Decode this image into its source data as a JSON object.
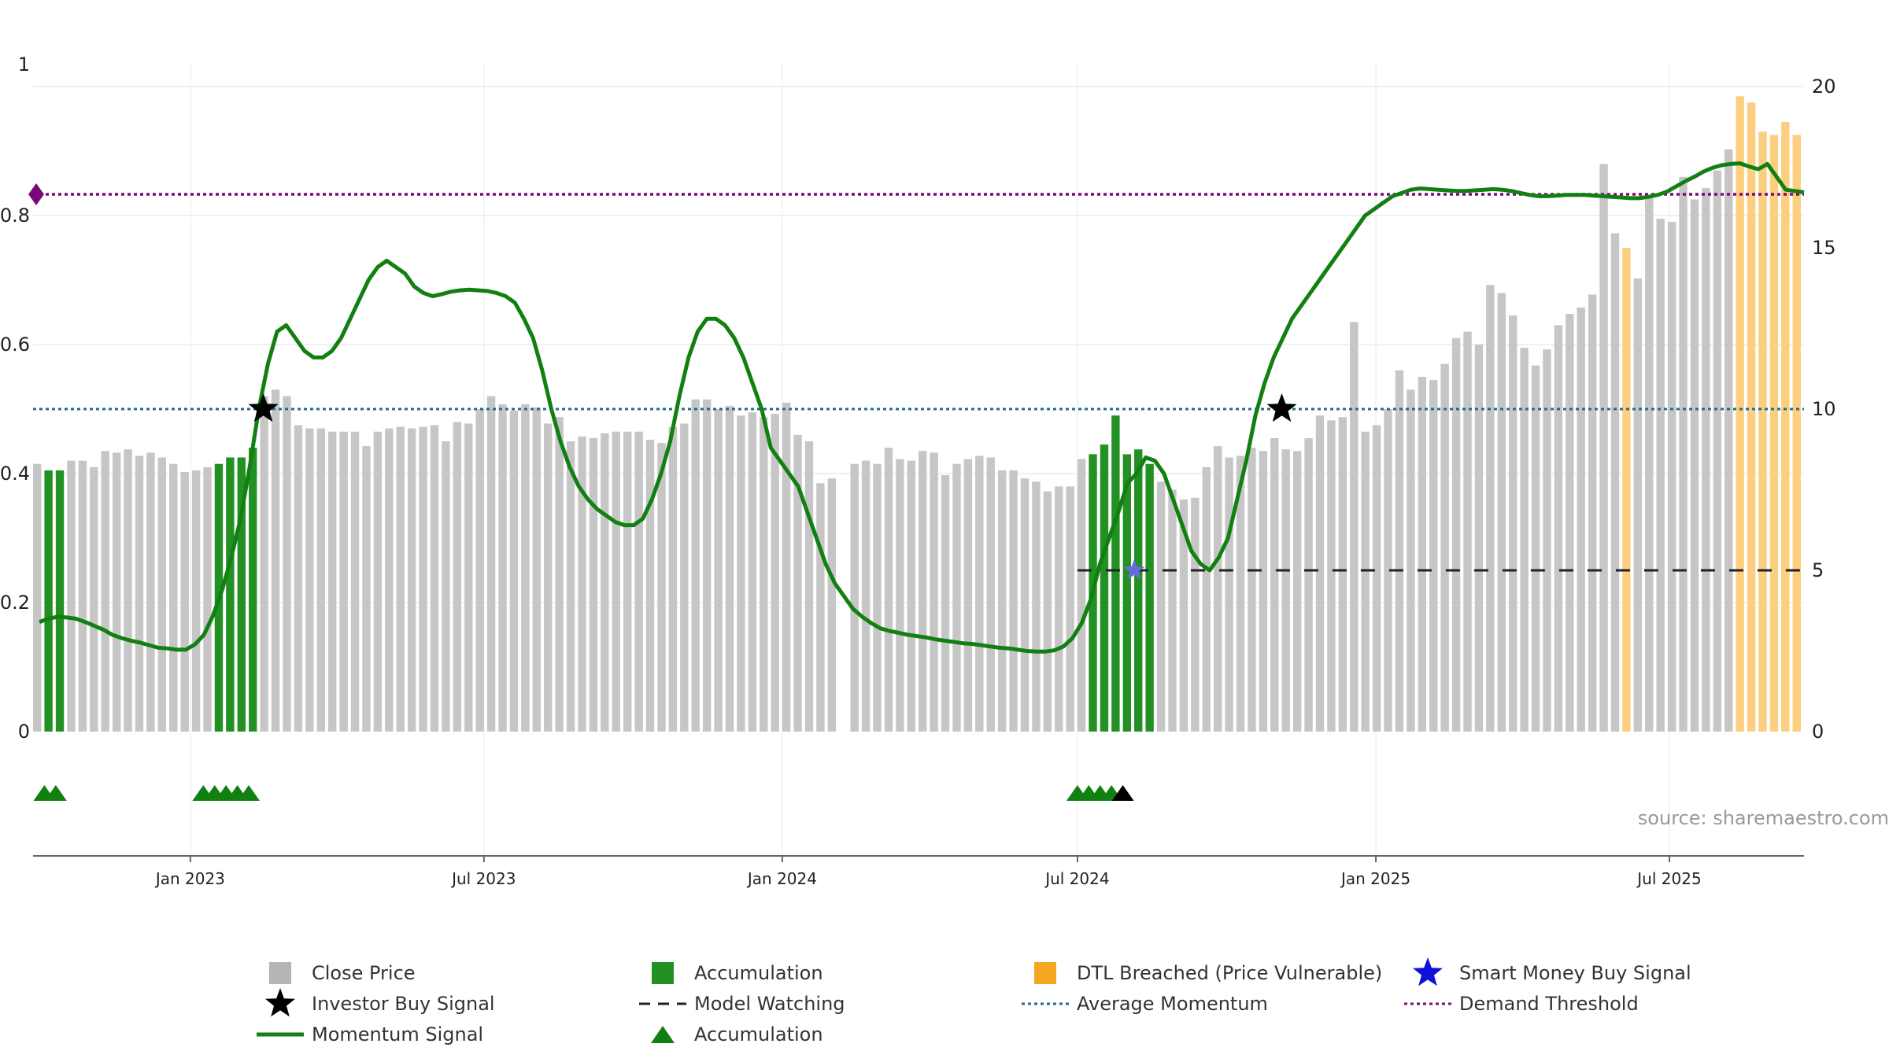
{
  "chart_data": {
    "type": "bar",
    "source_text": "source: sharemaestro.com",
    "x_ticks": [
      "Jan 2023",
      "Jul 2023",
      "Jan 2024",
      "Jul 2024",
      "Jan 2025",
      "Jul 2025"
    ],
    "x_tick_dates": [
      "2023-01-01",
      "2023-07-01",
      "2024-01-01",
      "2024-07-01",
      "2025-01-01",
      "2025-07-01"
    ],
    "x_range": [
      "2022-09-26",
      "2025-09-22"
    ],
    "y_left": {
      "ticks": [
        "0",
        "0.2",
        "0.4",
        "0.6",
        "0.8",
        "1"
      ],
      "values": [
        0,
        0.2,
        0.4,
        0.6,
        0.8,
        1
      ],
      "range": [
        0,
        1
      ]
    },
    "y_right": {
      "ticks": [
        "0",
        "5",
        "10",
        "15",
        "20"
      ],
      "values": [
        0,
        5,
        10,
        15,
        20
      ],
      "range": [
        0,
        20
      ]
    },
    "price_weekly": [
      8.3,
      8.1,
      8.1,
      8.4,
      8.4,
      8.2,
      8.7,
      8.65,
      8.75,
      8.55,
      8.65,
      8.5,
      8.3,
      8.05,
      8.1,
      8.2,
      8.3,
      8.5,
      8.5,
      8.8,
      10.4,
      10.6,
      10.4,
      9.5,
      9.4,
      9.4,
      9.3,
      9.3,
      9.3,
      8.85,
      9.3,
      9.4,
      9.45,
      9.4,
      9.45,
      9.5,
      9.0,
      9.6,
      9.55,
      10.0,
      10.4,
      10.15,
      9.95,
      10.15,
      10.05,
      9.55,
      9.75,
      9.0,
      9.15,
      9.1,
      9.25,
      9.3,
      9.3,
      9.3,
      9.05,
      8.95,
      9.45,
      9.55,
      10.3,
      10.3,
      10.0,
      10.1,
      9.8,
      9.9,
      9.75,
      9.85,
      10.2,
      9.2,
      9.0,
      7.7,
      7.85,
      0.0,
      8.3,
      8.4,
      8.3,
      8.8,
      8.45,
      8.4,
      8.7,
      8.65,
      7.95,
      8.3,
      8.45,
      8.55,
      8.5,
      8.1,
      8.1,
      7.85,
      7.75,
      7.45,
      7.6,
      7.6,
      8.45,
      8.6,
      8.9,
      9.8,
      8.6,
      8.75,
      8.3,
      7.75,
      7.5,
      7.2,
      7.25,
      8.2,
      8.85,
      8.5,
      8.55,
      8.8,
      8.7,
      9.1,
      8.75,
      8.7,
      9.1,
      9.8,
      9.65,
      9.75,
      12.7,
      9.3,
      9.5,
      10.0,
      11.2,
      10.6,
      11.0,
      10.9,
      11.4,
      12.2,
      12.4,
      12.0,
      13.85,
      13.6,
      12.9,
      11.9,
      11.35,
      11.85,
      12.6,
      12.95,
      13.15,
      13.55,
      17.6,
      15.45,
      15.0,
      14.05,
      16.6,
      15.9,
      15.8,
      17.2,
      16.5,
      16.85,
      17.4,
      18.05,
      19.7,
      19.5,
      18.6,
      18.5,
      18.9,
      18.5
    ],
    "series": [
      {
        "name": "Close Price",
        "color": "#c6c6c6"
      },
      {
        "name": "Investor Buy Signal",
        "color": "#000000",
        "points": [
          {
            "date": "2023-02-15",
            "y": 0.5
          },
          {
            "date": "2024-11-04",
            "y": 0.5
          }
        ]
      },
      {
        "name": "Momentum Signal",
        "color": "#118011",
        "points": [
          [
            0.17,
            0.175
          ],
          [
            0.178,
            0.177
          ],
          [
            0.175,
            0.17
          ],
          [
            0.164,
            0.158
          ],
          [
            0.15,
            0.145
          ],
          [
            0.141,
            0.138
          ],
          [
            0.134,
            0.13
          ],
          [
            0.129,
            0.127
          ],
          [
            0.127,
            0.135
          ],
          [
            0.15,
            0.18
          ],
          [
            0.22,
            0.27
          ],
          [
            0.33,
            0.41
          ],
          [
            0.5,
            0.57
          ],
          [
            0.62,
            0.63
          ],
          [
            0.61,
            0.59
          ],
          [
            0.58,
            0.58
          ],
          [
            0.59,
            0.61
          ],
          [
            0.64,
            0.67
          ],
          [
            0.7,
            0.72
          ],
          [
            0.73,
            0.72
          ],
          [
            0.71,
            0.69
          ],
          [
            0.68,
            0.675
          ],
          [
            0.678,
            0.682
          ],
          [
            0.684,
            0.685
          ],
          [
            0.684,
            0.683
          ],
          [
            0.68,
            0.675
          ],
          [
            0.665,
            0.64
          ],
          [
            0.61,
            0.56
          ],
          [
            0.5,
            0.45
          ],
          [
            0.41,
            0.38
          ],
          [
            0.36,
            0.345
          ],
          [
            0.335,
            0.325
          ],
          [
            0.32,
            0.32
          ],
          [
            0.33,
            0.36
          ],
          [
            0.4,
            0.45
          ],
          [
            0.52,
            0.58
          ],
          [
            0.62,
            0.64
          ],
          [
            0.64,
            0.63
          ],
          [
            0.61,
            0.58
          ],
          [
            0.54,
            0.5
          ],
          [
            0.44,
            0.42
          ],
          [
            0.4,
            0.38
          ],
          [
            0.34,
            0.3
          ],
          [
            0.26,
            0.23
          ],
          [
            0.21,
            0.19
          ],
          [
            0.178,
            0.168
          ],
          [
            0.16,
            0.156
          ],
          [
            0.153,
            0.15
          ],
          [
            0.148,
            0.146
          ],
          [
            0.143,
            0.141
          ],
          [
            0.139,
            0.137
          ],
          [
            0.136,
            0.134
          ],
          [
            0.132,
            0.13
          ],
          [
            0.129,
            0.127
          ],
          [
            0.125,
            0.124
          ],
          [
            0.124,
            0.126
          ],
          [
            0.132,
            0.145
          ],
          [
            0.168,
            0.205
          ],
          [
            0.26,
            0.3
          ],
          [
            0.34,
            0.385
          ],
          [
            0.4,
            0.425
          ],
          [
            0.42,
            0.4
          ],
          [
            0.36,
            0.32
          ],
          [
            0.28,
            0.26
          ],
          [
            0.25,
            0.27
          ],
          [
            0.3,
            0.36
          ],
          [
            0.42,
            0.49
          ],
          [
            0.54,
            0.58
          ],
          [
            0.61,
            0.64
          ],
          [
            0.66,
            0.68
          ],
          [
            0.7,
            0.72
          ],
          [
            0.74,
            0.76
          ],
          [
            0.78,
            0.8
          ],
          [
            0.81,
            0.82
          ],
          [
            0.83,
            0.835
          ],
          [
            0.84,
            0.842
          ],
          [
            0.841,
            0.84
          ],
          [
            0.839,
            0.838
          ],
          [
            0.838,
            0.839
          ],
          [
            0.84,
            0.841
          ],
          [
            0.84,
            0.838
          ],
          [
            0.835,
            0.832
          ],
          [
            0.83,
            0.83
          ],
          [
            0.831,
            0.832
          ],
          [
            0.832,
            0.832
          ],
          [
            0.831,
            0.83
          ],
          [
            0.829,
            0.828
          ],
          [
            0.827,
            0.827
          ],
          [
            0.829,
            0.832
          ],
          [
            0.837,
            0.845
          ],
          [
            0.853,
            0.86
          ],
          [
            0.868,
            0.874
          ],
          [
            0.878,
            0.88
          ],
          [
            0.881,
            0.876
          ],
          [
            0.872,
            0.88
          ],
          [
            0.86,
            0.84
          ],
          [
            0.838,
            0.836
          ]
        ]
      },
      {
        "name": "Accumulation",
        "color": "#239023",
        "weeks": [
          1,
          2,
          16,
          17,
          18,
          19,
          93,
          94,
          95,
          96,
          97,
          98
        ]
      },
      {
        "name": "Model Watching",
        "color": "#222222",
        "start_date": "2024-07-01",
        "y": 5
      },
      {
        "name": "Accumulation",
        "color": "#118011",
        "markers": [
          "2022-10-03",
          "2022-10-10",
          "2023-01-09",
          "2023-01-16",
          "2023-01-23",
          "2023-01-30",
          "2023-02-06",
          "2024-07-01",
          "2024-07-08",
          "2024-07-15",
          "2024-07-22"
        ],
        "marker_black": [
          "2024-07-29"
        ]
      },
      {
        "name": "DTL Breached (Price Vulnerable)",
        "color": "#fbcf7f",
        "weeks": [
          140,
          150,
          151,
          152,
          153,
          154,
          155,
          156
        ]
      },
      {
        "name": "Average Momentum",
        "color": "#236b8e",
        "y": 0.5
      },
      {
        "name": "Smart Money Buy Signal",
        "color": "#1010dd",
        "points": [
          {
            "date": "2024-08-05",
            "y": 0.25
          }
        ]
      },
      {
        "name": "Demand Threshold",
        "color": "#7a0a7a",
        "y": 0.833
      }
    ],
    "legend": [
      {
        "label": "Close Price",
        "marker": "gray-square"
      },
      {
        "label": "Accumulation",
        "marker": "green-square"
      },
      {
        "label": "DTL Breached (Price Vulnerable)",
        "marker": "orange-square"
      },
      {
        "label": "Smart Money Buy Signal",
        "marker": "blue-star"
      },
      {
        "label": "Investor Buy Signal",
        "marker": "black-star"
      },
      {
        "label": "Model Watching",
        "marker": "black-dashed-line"
      },
      {
        "label": "Average Momentum",
        "marker": "teal-dotted-line"
      },
      {
        "label": "Demand Threshold",
        "marker": "purple-dotted-line"
      },
      {
        "label": "Momentum Signal",
        "marker": "green-line"
      },
      {
        "label": "Accumulation",
        "marker": "green-triangle"
      }
    ]
  }
}
